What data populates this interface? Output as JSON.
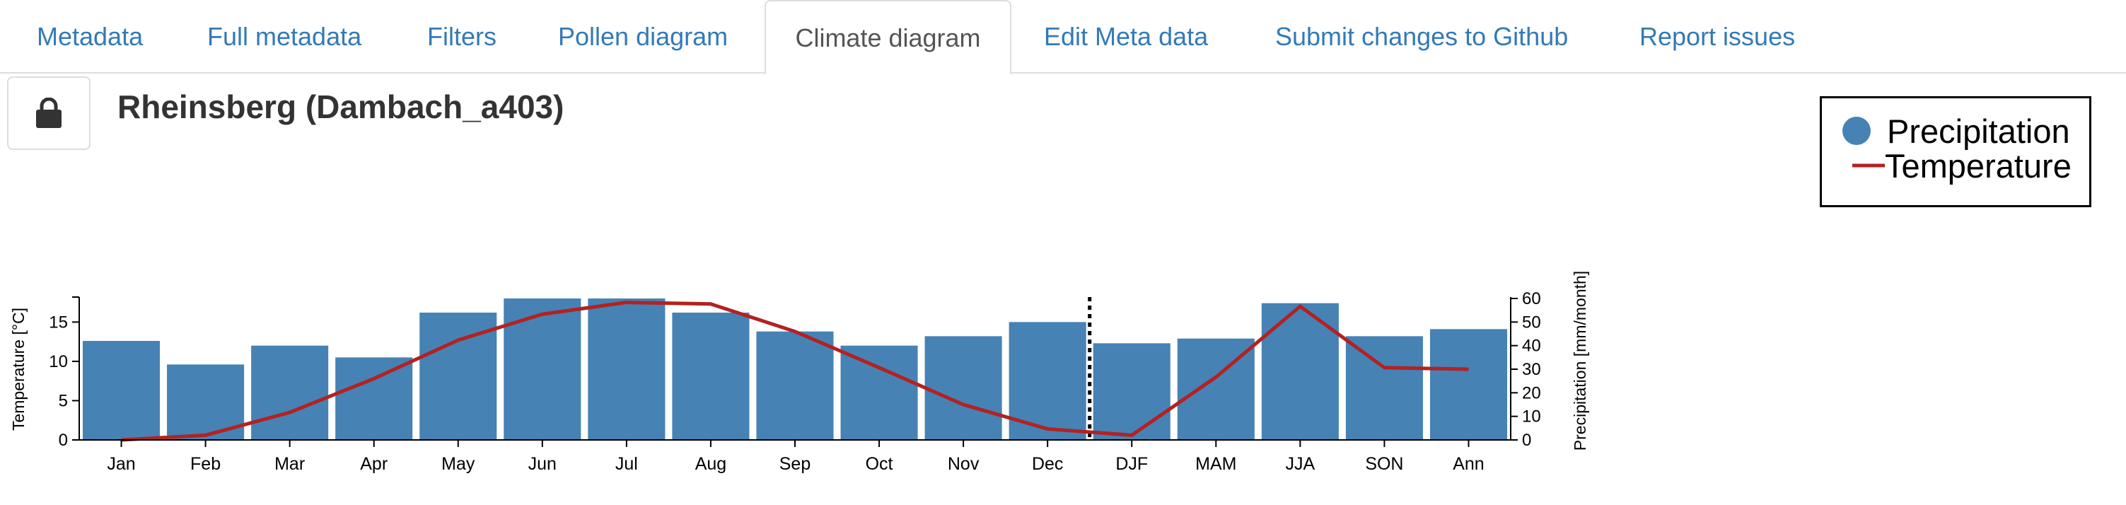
{
  "tabs": [
    {
      "label": "Metadata",
      "active": false
    },
    {
      "label": "Full metadata",
      "active": false
    },
    {
      "label": "Filters",
      "active": false
    },
    {
      "label": "Pollen diagram",
      "active": false
    },
    {
      "label": "Climate diagram",
      "active": true
    },
    {
      "label": "Edit Meta data",
      "active": false
    },
    {
      "label": "Submit changes to Github",
      "active": false
    },
    {
      "label": "Report issues",
      "active": false
    }
  ],
  "header": {
    "title": "Rheinsberg (Dambach_a403)",
    "lock_icon": "lock-icon"
  },
  "legend": {
    "items": [
      {
        "label": "Precipitation",
        "symbol": "circle",
        "color": "#4682b4"
      },
      {
        "label": "Temperature",
        "symbol": "line",
        "color": "#b22222"
      }
    ]
  },
  "chart_data": {
    "type": "bar",
    "categories": [
      "Jan",
      "Feb",
      "Mar",
      "Apr",
      "May",
      "Jun",
      "Jul",
      "Aug",
      "Sep",
      "Oct",
      "Nov",
      "Dec",
      "DJF",
      "MAM",
      "JJA",
      "SON",
      "Ann"
    ],
    "series": [
      {
        "name": "Precipitation",
        "type": "bar",
        "axis": "right",
        "color": "#4682b4",
        "values": [
          42,
          32,
          40,
          35,
          54,
          60,
          60,
          54,
          46,
          40,
          44,
          50,
          41,
          43,
          58,
          44,
          47
        ]
      },
      {
        "name": "Temperature",
        "type": "line",
        "axis": "left",
        "color": "#b22222",
        "values": [
          0,
          0.6,
          3.5,
          7.8,
          12.7,
          16.0,
          17.5,
          17.3,
          13.8,
          9.2,
          4.5,
          1.4,
          0.6,
          8.0,
          17.0,
          9.2,
          9.0
        ]
      }
    ],
    "ylabel_left": "Temperature [°C]",
    "ylabel_right": "Precipitation [mm/month]",
    "ylim_left": [
      0,
      18
    ],
    "ylim_right": [
      0,
      60
    ],
    "yticks_left": [
      0,
      5,
      10,
      15
    ],
    "yticks_right": [
      0,
      10,
      20,
      30,
      40,
      50,
      60
    ],
    "separator_after": "Dec",
    "legend_position": "top-right"
  }
}
